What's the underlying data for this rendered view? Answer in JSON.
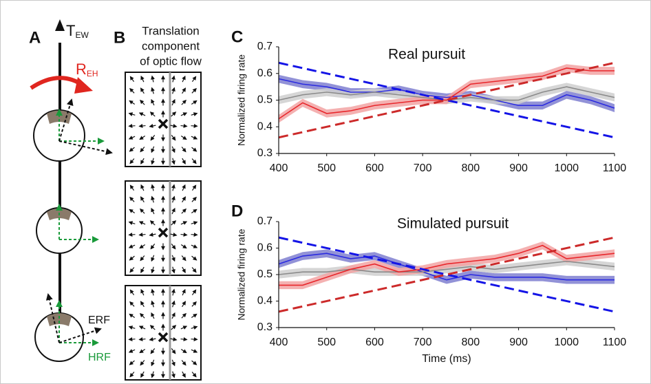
{
  "panels": {
    "A": {
      "letter": "A",
      "t_ew": {
        "main": "T",
        "sub": "EW"
      },
      "r_eh": {
        "main": "R",
        "sub": "EH"
      },
      "erf": "ERF",
      "hrf": "HRF"
    },
    "B": {
      "letter": "B",
      "title": [
        "Translation",
        "component",
        "of optic flow"
      ]
    }
  },
  "chart_data": [
    {
      "type": "line",
      "panel": "C",
      "title": "Real pursuit",
      "ylabel": "Normalized firing rate",
      "xlim": [
        400,
        1100
      ],
      "xticks": [
        400,
        500,
        600,
        700,
        800,
        900,
        1000,
        1100
      ],
      "ylim": [
        0.3,
        0.7
      ],
      "yticks": [
        0.3,
        0.4,
        0.5,
        0.6,
        0.7
      ],
      "x": [
        400,
        450,
        500,
        550,
        600,
        650,
        700,
        750,
        800,
        850,
        900,
        950,
        1000,
        1050,
        1100
      ],
      "series": [
        {
          "color": "#2a2ae0",
          "band_color": "#7f7fd0",
          "error": 0.015,
          "values": [
            0.58,
            0.56,
            0.55,
            0.53,
            0.53,
            0.54,
            0.52,
            0.51,
            0.52,
            0.5,
            0.48,
            0.48,
            0.52,
            0.5,
            0.47
          ]
        },
        {
          "color": "#8a8a8a",
          "band_color": "#cfcfcf",
          "error": 0.015,
          "values": [
            0.5,
            0.52,
            0.53,
            0.52,
            0.53,
            0.52,
            0.51,
            0.5,
            0.51,
            0.5,
            0.5,
            0.53,
            0.55,
            0.53,
            0.51
          ]
        },
        {
          "color": "#e8262b",
          "band_color": "#f2a3a3",
          "error": 0.015,
          "values": [
            0.43,
            0.49,
            0.45,
            0.46,
            0.48,
            0.49,
            0.5,
            0.5,
            0.56,
            0.57,
            0.58,
            0.59,
            0.62,
            0.61,
            0.61
          ]
        },
        {
          "color": "#1414e6",
          "dashed": true,
          "x": [
            400,
            1100
          ],
          "values": [
            0.64,
            0.36
          ]
        },
        {
          "color": "#cc2a2a",
          "dashed": true,
          "x": [
            400,
            1100
          ],
          "values": [
            0.36,
            0.64
          ]
        }
      ]
    },
    {
      "type": "line",
      "panel": "D",
      "title": "Simulated pursuit",
      "ylabel": "Normalized firing rate",
      "xlabel": "Time (ms)",
      "xlim": [
        400,
        1100
      ],
      "xticks": [
        400,
        500,
        600,
        700,
        800,
        900,
        1000,
        1100
      ],
      "ylim": [
        0.3,
        0.7
      ],
      "yticks": [
        0.3,
        0.4,
        0.5,
        0.6,
        0.7
      ],
      "x": [
        400,
        450,
        500,
        550,
        600,
        650,
        700,
        750,
        800,
        850,
        900,
        950,
        1000,
        1050,
        1100
      ],
      "series": [
        {
          "color": "#2a2ae0",
          "band_color": "#7f7fd0",
          "error": 0.015,
          "values": [
            0.54,
            0.57,
            0.58,
            0.56,
            0.57,
            0.54,
            0.51,
            0.48,
            0.5,
            0.49,
            0.49,
            0.49,
            0.48,
            0.48,
            0.48
          ]
        },
        {
          "color": "#8a8a8a",
          "band_color": "#cfcfcf",
          "error": 0.015,
          "values": [
            0.5,
            0.51,
            0.51,
            0.52,
            0.51,
            0.51,
            0.51,
            0.52,
            0.53,
            0.52,
            0.53,
            0.54,
            0.55,
            0.54,
            0.53
          ]
        },
        {
          "color": "#e8262b",
          "band_color": "#f2a3a3",
          "error": 0.015,
          "values": [
            0.46,
            0.46,
            0.49,
            0.52,
            0.54,
            0.51,
            0.52,
            0.54,
            0.55,
            0.56,
            0.58,
            0.61,
            0.56,
            0.57,
            0.58
          ]
        },
        {
          "color": "#1414e6",
          "dashed": true,
          "x": [
            400,
            1100
          ],
          "values": [
            0.64,
            0.36
          ]
        },
        {
          "color": "#cc2a2a",
          "dashed": true,
          "x": [
            400,
            1100
          ],
          "values": [
            0.36,
            0.64
          ]
        }
      ]
    }
  ]
}
